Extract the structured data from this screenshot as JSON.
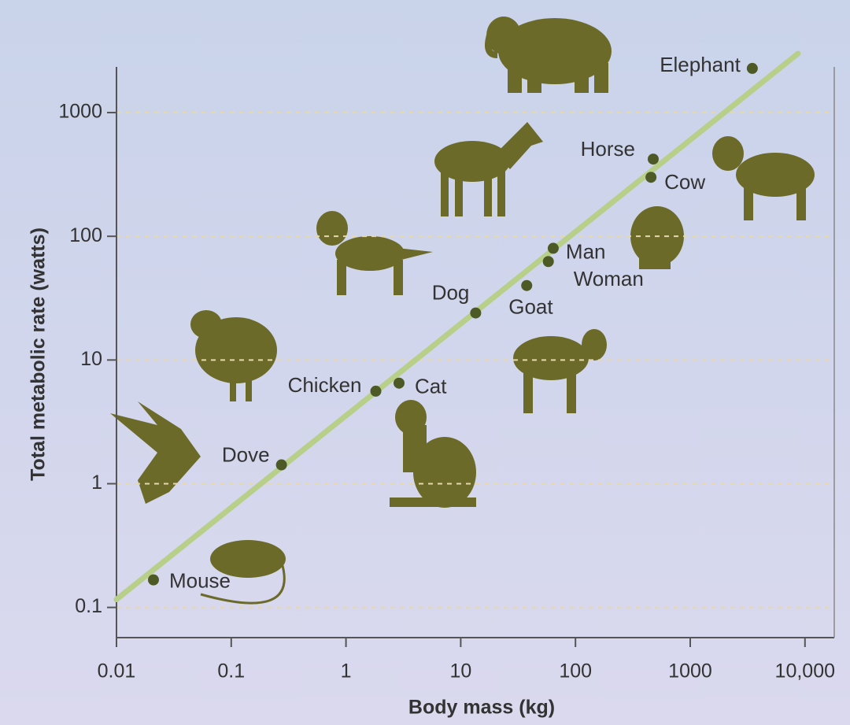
{
  "chart_data": {
    "type": "scatter",
    "x_label": "Body mass (kg)",
    "y_label": "Total metabolic rate (watts)",
    "x_log": true,
    "y_log": true,
    "xlim": [
      0.01,
      18000
    ],
    "ylim": [
      0.057,
      2340
    ],
    "xticks": [
      0.01,
      0.1,
      1,
      10,
      100,
      1000,
      {
        "value": 10000,
        "label": "10,000"
      }
    ],
    "yticks": [
      0.1,
      1,
      10,
      100,
      1000
    ],
    "grid": true,
    "series": [
      {
        "color": "#4d5a26",
        "labels": [
          "Mouse",
          "Dove",
          "Chicken",
          "Cat",
          "Dog",
          "Goat",
          "Woman",
          "Man",
          "Cow",
          "Horse",
          "Elephant"
        ],
        "x": [
          0.021,
          0.274,
          1.82,
          2.9,
          13.5,
          37.6,
          58,
          64,
          455,
          476,
          3475
        ],
        "values": [
          0.167,
          1.42,
          5.6,
          6.5,
          24,
          40,
          62.5,
          80,
          300,
          421,
          2275
        ]
      }
    ],
    "trend_line": {
      "color": "#b8cf8a",
      "x": [
        0.01,
        8700
      ],
      "values": [
        0.116,
        3000
      ]
    }
  }
}
